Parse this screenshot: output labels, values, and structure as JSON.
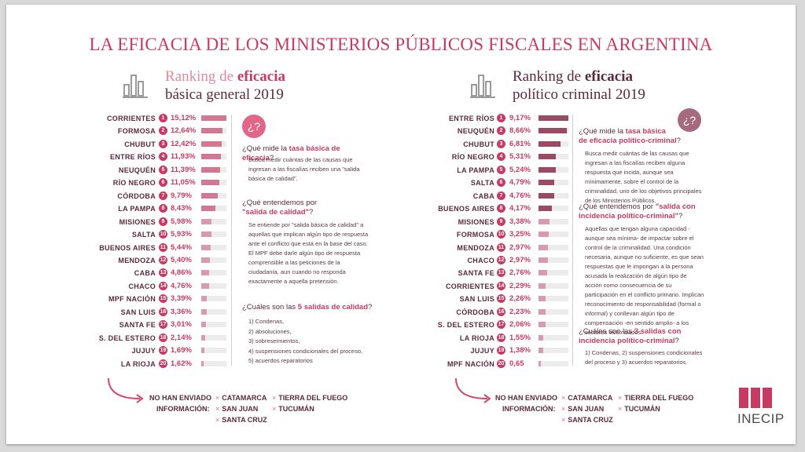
{
  "title": "LA EFICACIA DE  LOS MINISTERIOS PÚBLICOS  FISCALES EN ARGENTINA",
  "colors": {
    "accent": "#c73a63",
    "bar_dark": "#9b4a63",
    "bar_light": "#d79aae",
    "dark": "#5a2a3a"
  },
  "chart_data": [
    {
      "type": "bar",
      "title": "Ranking de eficacia básica general 2019",
      "title_line1_a": "Ranking de ",
      "title_line1_b": "eficacia",
      "title_line2": "básica general 2019",
      "categories": [
        "CORRIENTES",
        "FORMOSA",
        "CHUBUT",
        "ENTRE RÍOS",
        "NEUQUÉN",
        "RÍO NEGRO",
        "CÓRDOBA",
        "LA PAMPA",
        "MISIONES",
        "SALTA",
        "BUENOS AIRES",
        "MENDOZA",
        "CABA",
        "CHACO",
        "MPF NACIÓN",
        "SAN LUIS",
        "SANTA FE",
        "S. DEL ESTERO",
        "JUJUY",
        "LA RIOJA"
      ],
      "ranks": [
        "1",
        "2",
        "3",
        "4",
        "5",
        "6",
        "7",
        "8",
        "9",
        "10",
        "11",
        "12",
        "13",
        "14",
        "15",
        "16",
        "17",
        "18",
        "19",
        "20"
      ],
      "value_labels": [
        "15,12%",
        "12,64%",
        "12,42%",
        "11,93%",
        "11,39%",
        "11,05%",
        "9,79%",
        "8,43%",
        "5,98%",
        "5,93%",
        "5,44%",
        "5,40%",
        "4,86%",
        "4,76%",
        "3,39%",
        "3,36%",
        "3,01%",
        "2,14%",
        "1,69%",
        "1,62%"
      ],
      "values": [
        15.12,
        12.64,
        12.42,
        11.93,
        11.39,
        11.05,
        9.79,
        8.43,
        5.98,
        5.93,
        5.44,
        5.4,
        4.86,
        4.76,
        3.39,
        3.36,
        3.01,
        2.14,
        1.69,
        1.62
      ],
      "max": 15.12
    },
    {
      "type": "bar",
      "title": "Ranking de eficacia político criminal 2019",
      "title_line1_a": "Ranking de ",
      "title_line1_b": "eficacia",
      "title_line2": "político criminal 2019",
      "categories": [
        "ENTRE RÍOS",
        "NEUQUÉN",
        "CHUBUT",
        "RÍO NEGRO",
        "LA PAMPA",
        "SALTA",
        "CABA",
        "BUENOS AIRES",
        "MISIONES",
        "FORMOSA",
        "MENDOZA",
        "CHACO",
        "SANTA FE",
        "CORRIENTES",
        "SAN LUIS",
        "CÓRDOBA",
        "S. DEL ESTERO",
        "LA RIOJA",
        "JUJUY",
        "MPF NACIÓN"
      ],
      "ranks": [
        "1",
        "2",
        "3",
        "4",
        "5",
        "6",
        "7",
        "8",
        "9",
        "10",
        "11",
        "12",
        "13",
        "14",
        "15",
        "16",
        "17",
        "18",
        "19",
        "20"
      ],
      "value_labels": [
        "9,17%",
        "8,66%",
        "6,81%",
        "5,31%",
        "5,24%",
        "4,79%",
        "4,76%",
        "4,17%",
        "3,38%",
        "3,25%",
        "2,97%",
        "2,97%",
        "2,76%",
        "2,29%",
        "2,26%",
        "2,23%",
        "2,06%",
        "1,55%",
        "1,38%",
        "0,65"
      ],
      "values": [
        9.17,
        8.66,
        6.81,
        5.31,
        5.24,
        4.79,
        4.76,
        4.17,
        3.38,
        3.25,
        2.97,
        2.97,
        2.76,
        2.29,
        2.26,
        2.23,
        2.06,
        1.55,
        1.38,
        0.65
      ],
      "max": 9.17
    }
  ],
  "left_panel": {
    "badge": "¿?",
    "q1_a": "¿Qué mide la ",
    "q1_b": "tasa básica de eficacia",
    "q1_c": "?",
    "a1": "Busca medir cuántas de las causas que ingresan a las fiscalías reciben una \"salida básica de calidad\".",
    "q2_a": "¿Qué entendemos por",
    "q2_b": "\"salida de calidad\"",
    "q2_c": "?",
    "a2": "Se entiende por \"salida básica de calidad\" a aquellas que implican algún tipo de respuesta ante el conflicto que está en la base del caso. El MPF debe darle algún tipo de respuesta comprensible a las peticiones de la ciudadanía, aun cuando no responda exactamente a aquella pretensión.",
    "q3_a": "¿Cuáles son las ",
    "q3_b": "5 salidas de calidad",
    "q3_c": "?",
    "list": [
      "1) Condenas,",
      "2) absoluciones,",
      "3) sobreseimientos,",
      "4) suspensiones condicionales del proceso,",
      "5) acuerdos reparatorios"
    ]
  },
  "right_panel": {
    "badge": "¿?",
    "q1_a": "¿Qué mide la ",
    "q1_b": "tasa básica",
    "q1_c": "de eficacia político-criminal",
    "q1_d": "?",
    "a1": "Busca medir cuántas de las causas que ingresan a las fiscalías reciben alguna respuesta que incida, aunque sea mínimamente, sobre el control de la criminalidad, uno de los objetivos principales de los Ministerios Públicos.",
    "q2_a": "¿Qué entendemos por ",
    "q2_b": "\"salida con incidencia político-criminal\"",
    "q2_c": "?",
    "a2": "Aquellas que tengan alguna capacidad -aunque sea mínima- de impactar sobre el control de la criminalidad. Una condición necesaria, aunque no suficiente, es que sean respuestas que le impongan a la persona acusada la realización de algún tipo de acción como consecuencia de su participación en el conflicto primario. Implican reconocimiento de responsabilidad (formal o informal) y conllevan algún tipo de compensación -en sentido amplio- a los sectores victimizados.",
    "q3_a": "¿Cuáles son las ",
    "q3_b": "3 salidas con incidencia político-criminal",
    "q3_c": "?",
    "list": [
      "1) Condenas, 2) suspensiones condicionales",
      "del proceso y 3) acuerdos reparatorios."
    ]
  },
  "footer": {
    "label1": "NO HAN ENVIADO",
    "label2": "INFORMACIÓN:",
    "x": "×",
    "items": [
      "CATAMARCA",
      "TIERRA DEL FUEGO",
      "SAN JUAN",
      "TUCUMÁN",
      "SANTA CRUZ"
    ]
  },
  "logo": {
    "name": "INECIP"
  }
}
